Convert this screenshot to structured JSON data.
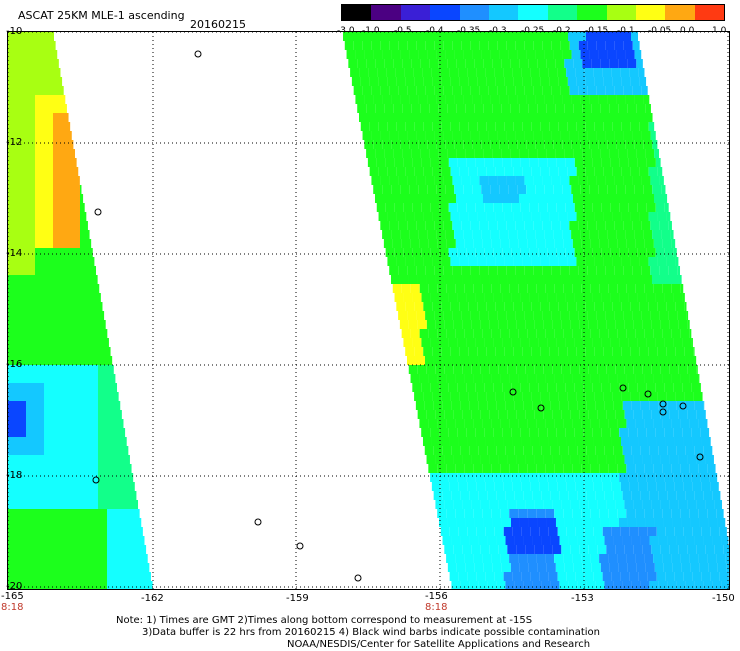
{
  "header": {
    "title": "ASCAT 25KM MLE-1 ascending",
    "date": "20160215"
  },
  "colorbar": {
    "labels": [
      "-3.0",
      "-1.0",
      "-0.5",
      "-0.4",
      "-0.35",
      "-0.3",
      "-0.25",
      "-0.2",
      "-0.15",
      "-0.1",
      "-0.05",
      "0.0",
      "1.0"
    ],
    "colors": [
      "#000000",
      "#4b0082",
      "#3a1fd6",
      "#0a46ff",
      "#1f8fff",
      "#14c8ff",
      "#14ffff",
      "#12ff8a",
      "#1cff1c",
      "#a8ff12",
      "#ffff14",
      "#ffa812",
      "#ff3a12"
    ]
  },
  "axes": {
    "lat_labels": [
      "-10",
      "-12",
      "-14",
      "-16",
      "-18",
      "-20"
    ],
    "lon_labels": [
      "-165",
      "-162",
      "-159",
      "-156",
      "-153",
      "-150"
    ],
    "time_labels": [
      "8:18",
      "8:18"
    ]
  },
  "footer": {
    "line1": "Note: 1) Times are GMT 2)Times along bottom correspond to measurement at -15S",
    "line2": "3)Data buffer is 22 hrs from 20160215 4) Black wind barbs indicate possible contamination",
    "line3": "NOAA/NESDIS/Center for Satellite Applications and Research"
  },
  "palette": {
    "yellow": "#ffff14",
    "orange": "#ffa812",
    "green": "#1cff1c",
    "lime": "#a8ff12",
    "cyan": "#14ffff",
    "aqua": "#14c8ff",
    "blue": "#1f8fff",
    "deepblue": "#0a46ff",
    "seagreen": "#12ff8a"
  }
}
